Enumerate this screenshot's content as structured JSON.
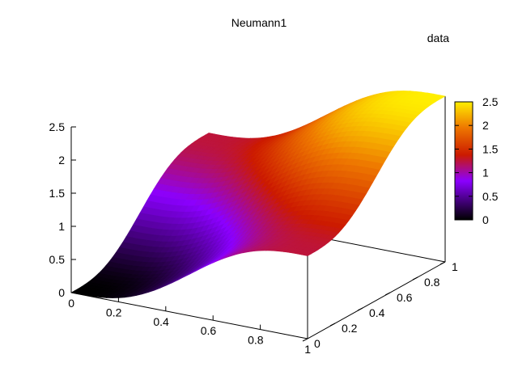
{
  "chart_data": {
    "type": "surface",
    "title": "Neumann1",
    "legend_label": "data",
    "x_ticks": [
      "0",
      "0.2",
      "0.4",
      "0.6",
      "0.8",
      "1"
    ],
    "y_ticks": [
      "0",
      "0.2",
      "0.4",
      "0.6",
      "0.8",
      "1"
    ],
    "z_ticks": [
      "0",
      "0.5",
      "1",
      "1.5",
      "2",
      "2.5"
    ],
    "colorbar_ticks": [
      "0",
      "0.5",
      "1",
      "1.5",
      "2",
      "2.5"
    ],
    "xlim": [
      0,
      1
    ],
    "ylim": [
      0,
      1
    ],
    "zlim": [
      0,
      2.5
    ],
    "colorbar_range": [
      0,
      2.5
    ],
    "surface_function": "z(x,y) = 2.5 * (x + y - sin(2*pi*x)/(2*pi) - sin(2*pi*y)/(2*pi)) / 2",
    "corner_values": {
      "x0_y0": 0,
      "x1_y0": 1.25,
      "x0_y1": 1.25,
      "x1_y1": 2.5
    },
    "palette": [
      "#000000",
      "#8b00ff",
      "#cc2200",
      "#ff8800",
      "#ffff00"
    ]
  }
}
